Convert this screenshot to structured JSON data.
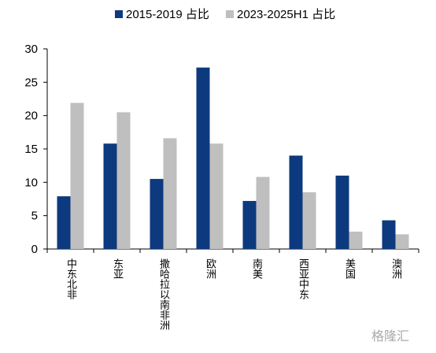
{
  "chart_data": {
    "type": "bar",
    "categories": [
      "中东北非",
      "东亚",
      "撒哈拉以南非洲",
      "欧洲",
      "南美",
      "西亚中东",
      "美国",
      "澳洲"
    ],
    "series": [
      {
        "name": "2015-2019 占比",
        "color": "#0d3a7e",
        "values": [
          7.9,
          15.8,
          10.5,
          27.2,
          7.2,
          14.0,
          11.0,
          4.3
        ]
      },
      {
        "name": "2023-2025H1 占比",
        "color": "#bfbfbf",
        "values": [
          21.9,
          20.5,
          16.6,
          15.8,
          10.8,
          8.5,
          2.6,
          2.2
        ]
      }
    ],
    "ylim": [
      0,
      30
    ],
    "yticks": [
      0,
      5,
      10,
      15,
      20,
      25,
      30
    ],
    "grid": false,
    "watermark": "格隆汇"
  }
}
